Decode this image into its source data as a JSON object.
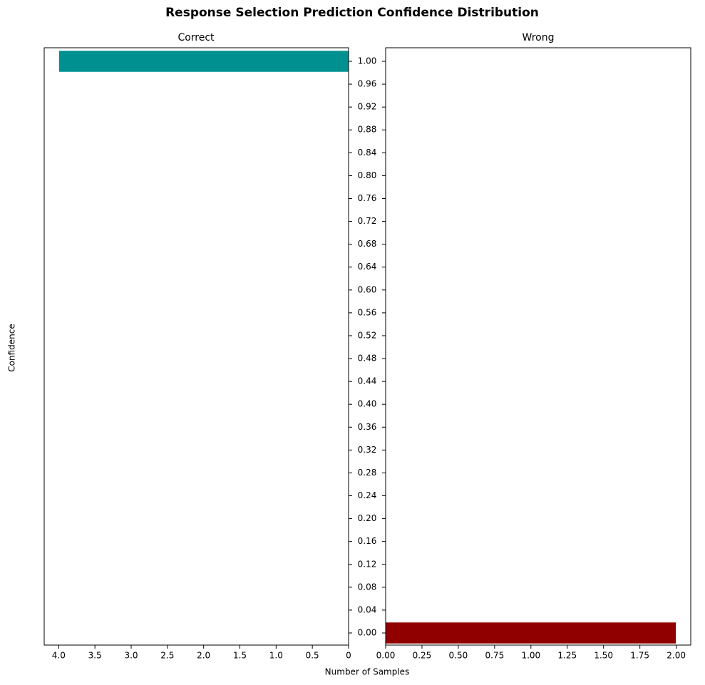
{
  "title": "Response Selection Prediction Confidence Distribution",
  "chart_data": [
    {
      "type": "barh",
      "title": "Correct",
      "ylabel": "Confidence",
      "xlabel": "Number of Samples",
      "y": [
        1
      ],
      "values": [
        4
      ],
      "color": "#009090",
      "xlim": [
        4.2,
        0
      ],
      "xticks": [
        {
          "value": 4,
          "label": "4.0"
        },
        3.5,
        {
          "value": 3,
          "label": "3.0"
        },
        2.5,
        {
          "value": 2,
          "label": "2.0"
        },
        1.5,
        {
          "value": 1,
          "label": "1.0"
        },
        0.5,
        0
      ],
      "ylim": [
        -0.0212,
        1.0237
      ],
      "yticks": [
        {
          "value": 0,
          "label": "0.00"
        },
        0.04,
        0.08,
        0.12,
        0.16,
        {
          "value": 0.2,
          "label": "0.20"
        },
        0.24,
        0.28,
        0.32,
        0.36,
        {
          "value": 0.4,
          "label": "0.40"
        },
        0.44,
        0.48,
        0.52,
        0.56,
        {
          "value": 0.6,
          "label": "0.60"
        },
        0.64,
        0.68,
        0.72,
        0.76,
        {
          "value": 0.8,
          "label": "0.80"
        },
        0.84,
        0.88,
        0.92,
        0.96,
        {
          "value": 1,
          "label": "1.00"
        }
      ]
    },
    {
      "type": "barh",
      "title": "Wrong",
      "y": [
        0
      ],
      "values": [
        2
      ],
      "color": "#900000",
      "xlim": [
        0,
        2.1
      ],
      "xticks": [
        {
          "value": 0,
          "label": "0.00"
        },
        0.25,
        {
          "value": 0.5,
          "label": "0.50"
        },
        0.75,
        {
          "value": 1,
          "label": "1.00"
        },
        1.25,
        {
          "value": 1.5,
          "label": "1.50"
        },
        1.75,
        {
          "value": 2,
          "label": "2.00"
        }
      ]
    }
  ]
}
